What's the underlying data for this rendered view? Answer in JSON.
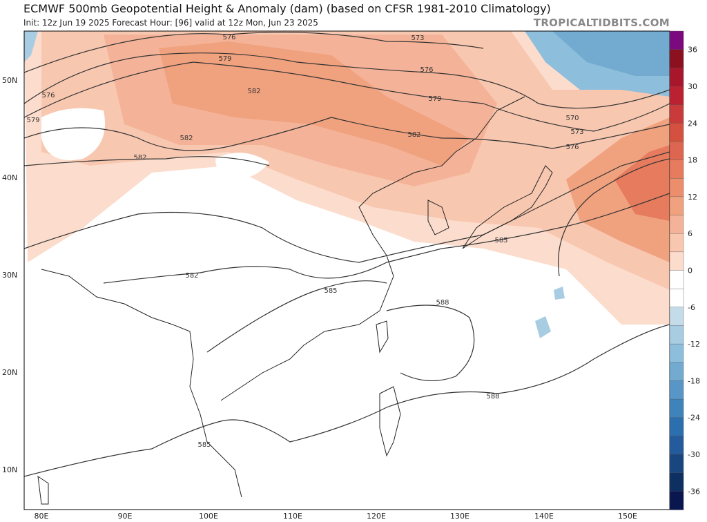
{
  "header": {
    "title": "ECMWF 500mb Geopotential Height & Anomaly (dam) (based on CFSR 1981-2010 Climatology)",
    "subtitle": "Init: 12z Jun 19 2025   Forecast Hour: [96]   valid at 12z Mon, Jun 23 2025",
    "brand": "TROPICALTIDBITS.COM"
  },
  "axes": {
    "lat_labels": [
      "50N",
      "40N",
      "30N",
      "20N",
      "10N"
    ],
    "lon_labels": [
      "80E",
      "90E",
      "100E",
      "110E",
      "120E",
      "130E",
      "140E",
      "150E"
    ]
  },
  "colorbar": {
    "labels": [
      "36",
      "30",
      "24",
      "18",
      "12",
      "6",
      "0",
      "-6",
      "-12",
      "-18",
      "-24",
      "-30",
      "-36"
    ],
    "colors": [
      "#7b0a7e",
      "#8b1020",
      "#a8162c",
      "#bb2130",
      "#c93a3a",
      "#d4503f",
      "#dd6650",
      "#e67b5e",
      "#ec8e6c",
      "#f0a17e",
      "#f4b398",
      "#f8c7b0",
      "#fcdccc",
      "#ffffff",
      "#ffffff",
      "#c4dcea",
      "#a8cde3",
      "#8dbedb",
      "#72aad0",
      "#5796c6",
      "#3f83bb",
      "#2c6fae",
      "#235b9c",
      "#19467f",
      "#0e2f62",
      "#0a1650"
    ]
  },
  "contour_labels": [
    "576",
    "579",
    "576",
    "573",
    "576",
    "579",
    "582",
    "582",
    "582",
    "582",
    "582",
    "579",
    "570",
    "573",
    "576",
    "585",
    "585",
    "588",
    "588",
    "585"
  ]
}
